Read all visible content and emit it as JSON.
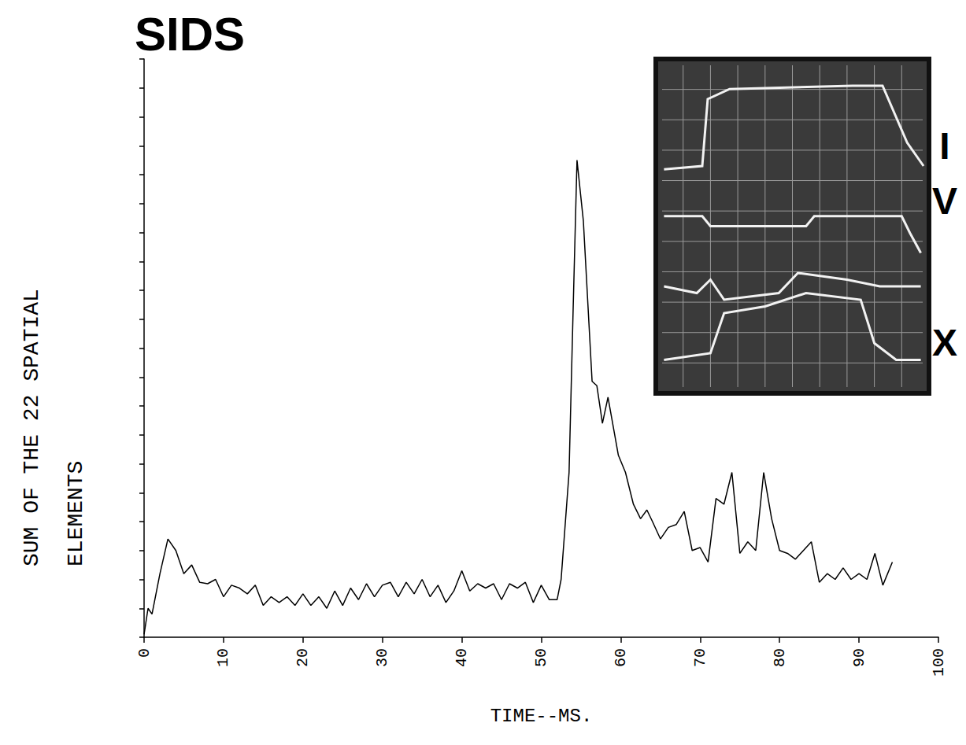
{
  "chart_data": {
    "type": "line",
    "title": "SIDS",
    "x_label": "TIME--MS.",
    "y_label": "SUM OF THE 22 SPATIAL ELEMENTS",
    "x": [
      0,
      0.5,
      1,
      2,
      3,
      4,
      5,
      6,
      7,
      8,
      9,
      10,
      11,
      12,
      13,
      14,
      15,
      16,
      17,
      18,
      19,
      20,
      21,
      22,
      23,
      24,
      25,
      26,
      27,
      28,
      29,
      30,
      31,
      32,
      33,
      34,
      35,
      36,
      37,
      38,
      39,
      40,
      41,
      42,
      43,
      44,
      45,
      46,
      47,
      48,
      49,
      50,
      51,
      52,
      52.5,
      53.5,
      54,
      54.5,
      55.3,
      56.4,
      57,
      57.7,
      58.4,
      59.7,
      60.6,
      61.6,
      62.5,
      63.3,
      64,
      65,
      66,
      67,
      68,
      69,
      70,
      71,
      72,
      73,
      74,
      75,
      76,
      77,
      78,
      79,
      80,
      81,
      82,
      83,
      84,
      85,
      86,
      87,
      88,
      89,
      90,
      91,
      92,
      93,
      94.2
    ],
    "values": [
      0.1,
      1.0,
      0.8,
      2.2,
      3.4,
      3.0,
      2.2,
      2.5,
      1.9,
      1.85,
      2.0,
      1.4,
      1.8,
      1.7,
      1.5,
      1.8,
      1.1,
      1.4,
      1.2,
      1.4,
      1.1,
      1.5,
      1.1,
      1.4,
      1.0,
      1.6,
      1.1,
      1.7,
      1.3,
      1.85,
      1.4,
      1.8,
      1.9,
      1.4,
      1.9,
      1.5,
      2.0,
      1.4,
      1.8,
      1.2,
      1.6,
      2.3,
      1.6,
      1.85,
      1.7,
      1.85,
      1.3,
      1.85,
      1.7,
      1.9,
      1.2,
      1.8,
      1.3,
      1.3,
      2.0,
      5.7,
      11.2,
      16.5,
      14.4,
      8.85,
      8.7,
      7.4,
      8.3,
      6.3,
      5.7,
      4.6,
      4.1,
      4.4,
      4.0,
      3.4,
      3.8,
      3.9,
      4.35,
      3.0,
      3.1,
      2.6,
      4.8,
      4.6,
      5.7,
      2.9,
      3.3,
      3.0,
      5.7,
      4.1,
      3.0,
      2.9,
      2.7,
      3.0,
      3.3,
      1.9,
      2.2,
      2.0,
      2.4,
      2.0,
      2.2,
      2.0,
      2.9,
      1.8,
      2.6
    ],
    "color": "#000000",
    "xlim": [
      0,
      100
    ],
    "xticks": [
      0,
      10,
      20,
      30,
      40,
      50,
      60,
      70,
      80,
      90,
      100
    ],
    "ylim": [
      0,
      20
    ],
    "yticks": [
      0,
      1,
      2,
      3,
      4,
      5,
      6,
      7,
      8,
      9,
      10,
      11,
      12,
      13,
      14,
      15,
      16,
      17,
      18,
      19,
      20
    ],
    "grid": false,
    "tick_labels": "x",
    "inset_labels": [
      "I",
      "V",
      "X"
    ]
  }
}
